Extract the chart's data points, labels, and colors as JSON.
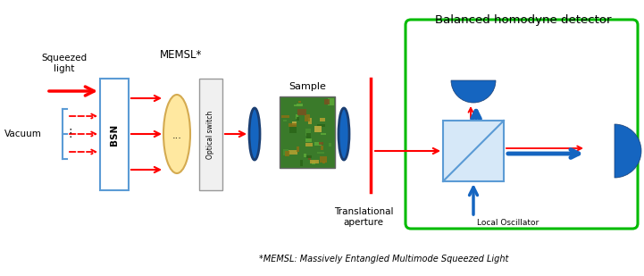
{
  "title": "Balanced homodyne detector",
  "footnote": "*MEMSL: Massively Entangled Multimode Squeezed Light",
  "labels": {
    "squeezed_light": "Squeezed\nlight",
    "vacuum": "Vacuum",
    "bsn": "BSN",
    "memsl": "MEMSL*",
    "optical_switch": "Optical switch",
    "sample": "Sample",
    "translational_aperture": "Translational\naperture",
    "local_oscillator": "Local Oscillator"
  },
  "colors": {
    "red": "#FF0000",
    "blue": "#1565C0",
    "dark_blue": "#1A3E72",
    "light_blue": "#5B9BD5",
    "green_box": "#00BB00",
    "yellow_ellipse": "#FFE8A0",
    "yellow_ellipse_edge": "#D4AA50",
    "white": "#FFFFFF",
    "black": "#000000",
    "bsn_box": "#5B9BD5",
    "beamsplitter_fill": "#D6E8F8"
  }
}
